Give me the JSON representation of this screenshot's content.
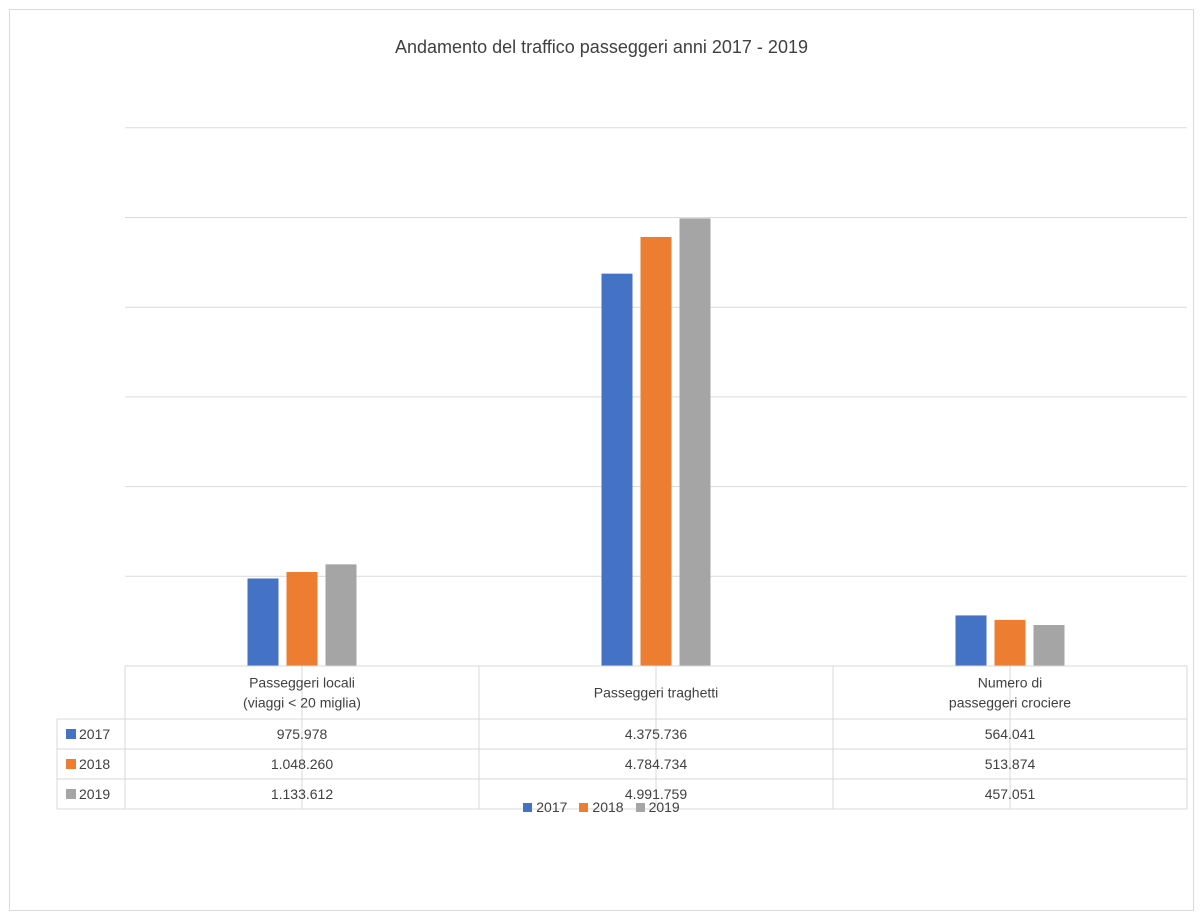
{
  "chart_data": {
    "type": "bar",
    "title": "Andamento del traffico passeggeri anni 2017 - 2019",
    "categories": [
      [
        "Passeggeri locali",
        "(viaggi < 20 miglia)"
      ],
      [
        "Passeggeri traghetti"
      ],
      [
        "Numero di",
        "passeggeri crociere"
      ]
    ],
    "series": [
      {
        "name": "2017",
        "color": "#4472c4",
        "values": [
          975978,
          4375736,
          564041
        ],
        "labels": [
          "975.978",
          "4.375.736",
          "564.041"
        ]
      },
      {
        "name": "2018",
        "color": "#ed7d31",
        "values": [
          1048260,
          4784734,
          513874
        ],
        "labels": [
          "1.048.260",
          "4.784.734",
          "513.874"
        ]
      },
      {
        "name": "2019",
        "color": "#a5a5a5",
        "values": [
          1133612,
          4991759,
          457051
        ],
        "labels": [
          "1.133.612",
          "4.991.759",
          "457.051"
        ]
      }
    ],
    "ylim": [
      0,
      6000000
    ],
    "gridlines": true,
    "data_table": true,
    "legend_position": "bottom"
  }
}
